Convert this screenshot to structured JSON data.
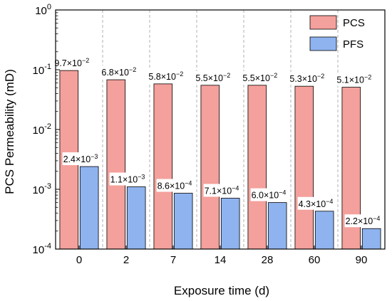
{
  "chart_data": {
    "type": "bar",
    "xlabel": "Exposure time (d)",
    "ylabel": "PCS Permeability (mD)",
    "yscale": "log",
    "ylim": [
      0.0001,
      1
    ],
    "categories": [
      "0",
      "2",
      "7",
      "14",
      "28",
      "60",
      "90"
    ],
    "series": [
      {
        "name": "PCS",
        "color": "#f4a09c",
        "values": [
          0.097,
          0.068,
          0.058,
          0.055,
          0.055,
          0.053,
          0.051
        ],
        "labels": [
          {
            "mant": "9.7",
            "exp": "−2"
          },
          {
            "mant": "6.8",
            "exp": "−2"
          },
          {
            "mant": "5.8",
            "exp": "−2"
          },
          {
            "mant": "5.5",
            "exp": "−2"
          },
          {
            "mant": "5.5",
            "exp": "−2"
          },
          {
            "mant": "5.3",
            "exp": "−2"
          },
          {
            "mant": "5.1",
            "exp": "−2"
          }
        ]
      },
      {
        "name": "PFS",
        "color": "#8fb3ef",
        "values": [
          0.0024,
          0.0011,
          0.00086,
          0.00071,
          0.0006,
          0.00043,
          0.00022
        ],
        "labels": [
          {
            "mant": "2.4",
            "exp": "−3"
          },
          {
            "mant": "1.1",
            "exp": "−3"
          },
          {
            "mant": "8.6",
            "exp": "−4"
          },
          {
            "mant": "7.1",
            "exp": "−4"
          },
          {
            "mant": "6.0",
            "exp": "−4"
          },
          {
            "mant": "4.3",
            "exp": "−4"
          },
          {
            "mant": "2.2",
            "exp": "−4"
          }
        ]
      }
    ],
    "yticks": [
      {
        "value": 0.0001,
        "base": "10",
        "exp": "-4"
      },
      {
        "value": 0.001,
        "base": "10",
        "exp": "-3"
      },
      {
        "value": 0.01,
        "base": "10",
        "exp": "-2"
      },
      {
        "value": 0.1,
        "base": "10",
        "exp": "-1"
      },
      {
        "value": 1,
        "base": "10",
        "exp": "0"
      }
    ],
    "legend": "top-right",
    "grid": "vertical dashed separators between categories"
  }
}
